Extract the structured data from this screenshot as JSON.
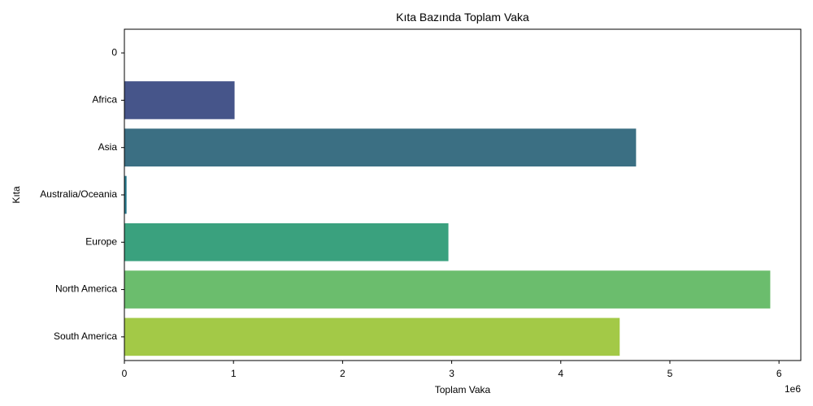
{
  "chart_data": {
    "type": "bar",
    "orientation": "horizontal",
    "title": "Kıta Bazında Toplam Vaka",
    "xlabel": "Toplam Vaka",
    "ylabel": "Kıta",
    "x_scale_note": "1e6",
    "xlim": [
      0,
      6.2
    ],
    "x_ticks": [
      "0",
      "1",
      "2",
      "3",
      "4",
      "5",
      "6"
    ],
    "grid": false,
    "categories": [
      "0",
      "Africa",
      "Asia",
      "Australia/Oceania",
      "Europe",
      "North America",
      "South America"
    ],
    "values": [
      0,
      1.01,
      4.69,
      0.02,
      2.97,
      5.92,
      4.54
    ],
    "colors": [
      "#440154",
      "#46558a",
      "#3b6f83",
      "#297b8e",
      "#3aa17e",
      "#6bbd6d",
      "#a3c947"
    ]
  }
}
